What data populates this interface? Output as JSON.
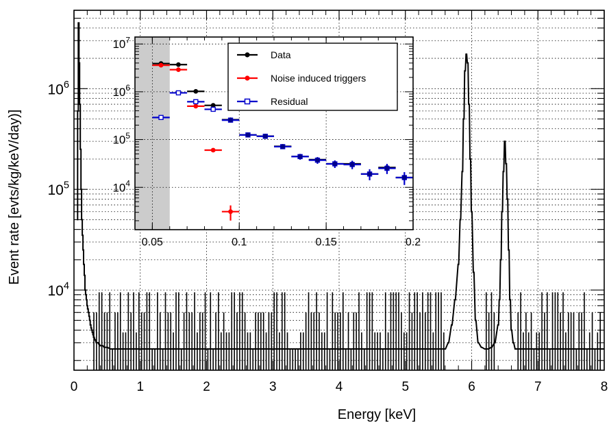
{
  "chart_data": [
    {
      "type": "histogram",
      "xlabel": "Energy [keV]",
      "ylabel": "Event rate [evts/kg/keV/day)]",
      "xlim": [
        0,
        8
      ],
      "ylim": [
        1600,
        6000000
      ],
      "yscale": "log",
      "grid": true,
      "x_ticks": [
        "0",
        "1",
        "2",
        "3",
        "4",
        "5",
        "6",
        "7",
        "8"
      ],
      "y_ticks": [
        "10^4",
        "10^5",
        "10^6"
      ],
      "bin_width": 0.01,
      "series": [
        {
          "color": "#000000",
          "x": [
            0.05,
            0.06,
            0.07,
            0.08,
            0.09,
            0.1,
            0.11,
            0.12,
            0.13,
            0.14,
            0.15,
            0.16,
            0.17,
            0.18,
            0.19,
            0.2,
            0.21,
            0.22,
            0.23,
            0.24,
            0.25,
            0.26,
            0.27,
            0.28,
            0.29,
            0.3,
            0.32,
            0.34,
            0.36,
            0.38,
            0.4,
            0.43,
            0.46,
            0.5,
            0.55,
            0.6,
            0.65,
            0.7,
            0.75,
            0.8,
            0.85,
            0.9,
            0.95,
            1.0,
            1.1,
            1.2,
            1.3,
            1.4,
            1.5,
            1.6,
            1.7,
            1.8,
            1.9,
            2.0,
            2.2,
            2.4,
            2.6,
            2.8,
            3.0,
            3.2,
            3.4,
            3.6,
            3.8,
            4.0,
            4.2,
            4.4,
            4.6,
            4.8,
            5.0,
            5.2,
            5.4,
            5.6,
            5.65,
            5.7,
            5.75,
            5.8,
            5.83,
            5.86,
            5.88,
            5.9,
            5.92,
            5.94,
            5.96,
            5.98,
            6.0,
            6.03,
            6.06,
            6.1,
            6.15,
            6.2,
            6.25,
            6.3,
            6.35,
            6.4,
            6.42,
            6.44,
            6.46,
            6.48,
            6.5,
            6.52,
            6.54,
            6.56,
            6.58,
            6.6,
            6.63,
            6.66,
            6.7,
            6.8,
            6.9,
            7.0,
            7.2,
            7.4,
            7.6,
            7.8,
            8.0
          ],
          "y": [
            50000,
            600000,
            4500000,
            1800000,
            700000,
            250000,
            100000,
            50000,
            35000,
            25000,
            18000,
            14000,
            10000,
            9000,
            8000,
            7000,
            6500,
            6000,
            5500,
            5000,
            4500,
            4200,
            4000,
            3800,
            3600,
            3400,
            3200,
            3000,
            3000,
            2900,
            2800,
            2800,
            2700,
            2700,
            2600,
            2600,
            2600,
            2600,
            2600,
            2600,
            2600,
            2600,
            2600,
            2600,
            2600,
            2600,
            2600,
            2600,
            2600,
            2600,
            2600,
            2600,
            2600,
            2600,
            2600,
            2600,
            2600,
            2600,
            2600,
            2600,
            2600,
            2600,
            2600,
            2600,
            2600,
            2600,
            2600,
            2600,
            2600,
            2600,
            2600,
            2600,
            3000,
            4500,
            8000,
            18000,
            50000,
            150000,
            500000,
            1500000,
            2200000,
            1800000,
            700000,
            200000,
            60000,
            15000,
            5000,
            3000,
            2700,
            2600,
            2600,
            2700,
            3000,
            4500,
            8000,
            20000,
            60000,
            150000,
            300000,
            180000,
            80000,
            25000,
            8000,
            4000,
            3000,
            2600,
            2600,
            2600,
            2600,
            2600,
            2600,
            2600,
            2600,
            2600,
            2600
          ]
        }
      ]
    },
    {
      "type": "scatter",
      "xlim": [
        0.04,
        0.2
      ],
      "ylim": [
        1300,
        14000000
      ],
      "yscale": "log",
      "grid": true,
      "x_ticks": [
        "0.05",
        "0.1",
        "0.15",
        "0.2"
      ],
      "y_ticks": [
        "10^4",
        "10^5",
        "10^6",
        "10^7"
      ],
      "shaded_region": [
        0.04,
        0.06
      ],
      "legend": {
        "placement": "top-right",
        "entries": [
          "Data",
          "Noise induced triggers",
          "Residual"
        ]
      },
      "series": [
        {
          "name": "Data",
          "color": "#000000",
          "marker": "filled-circle",
          "x": [
            0.055,
            0.065,
            0.075,
            0.085,
            0.095,
            0.105,
            0.115,
            0.125,
            0.135,
            0.145,
            0.155,
            0.165,
            0.175,
            0.185,
            0.195
          ],
          "y": [
            3900000,
            3700000,
            1020000,
            520000,
            260000,
            125000,
            118000,
            72000,
            44000,
            38000,
            31000,
            31000,
            19000,
            26000,
            16000
          ],
          "xerr": [
            0.005,
            0.005,
            0.005,
            0.005,
            0.005,
            0.005,
            0.005,
            0.005,
            0.005,
            0.005,
            0.005,
            0.005,
            0.005,
            0.005,
            0.005
          ]
        },
        {
          "name": "Noise induced triggers",
          "color": "#ff0000",
          "marker": "filled-circle",
          "x": [
            0.055,
            0.065,
            0.075,
            0.085,
            0.095
          ],
          "y": [
            3600000,
            2900000,
            500000,
            60000,
            3100
          ],
          "xerr": [
            0.005,
            0.005,
            0.005,
            0.005,
            0.005
          ]
        },
        {
          "name": "Residual",
          "color": "#0000cc",
          "marker": "open-square",
          "x": [
            0.055,
            0.065,
            0.075,
            0.085,
            0.095,
            0.105,
            0.115,
            0.125,
            0.135,
            0.145,
            0.155,
            0.165,
            0.175,
            0.185,
            0.195
          ],
          "y": [
            290000,
            950000,
            620000,
            430000,
            255000,
            125000,
            117000,
            71000,
            44000,
            37000,
            31000,
            30000,
            19000,
            25000,
            16000
          ],
          "xerr": [
            0.005,
            0.005,
            0.005,
            0.005,
            0.005,
            0.005,
            0.005,
            0.005,
            0.005,
            0.005,
            0.005,
            0.005,
            0.005,
            0.005,
            0.005
          ],
          "yerr_frac": [
            0,
            0,
            0,
            0,
            0,
            0.06,
            0.06,
            0.1,
            0.14,
            0.16,
            0.18,
            0.2,
            0.26,
            0.24,
            0.3
          ]
        }
      ]
    }
  ]
}
